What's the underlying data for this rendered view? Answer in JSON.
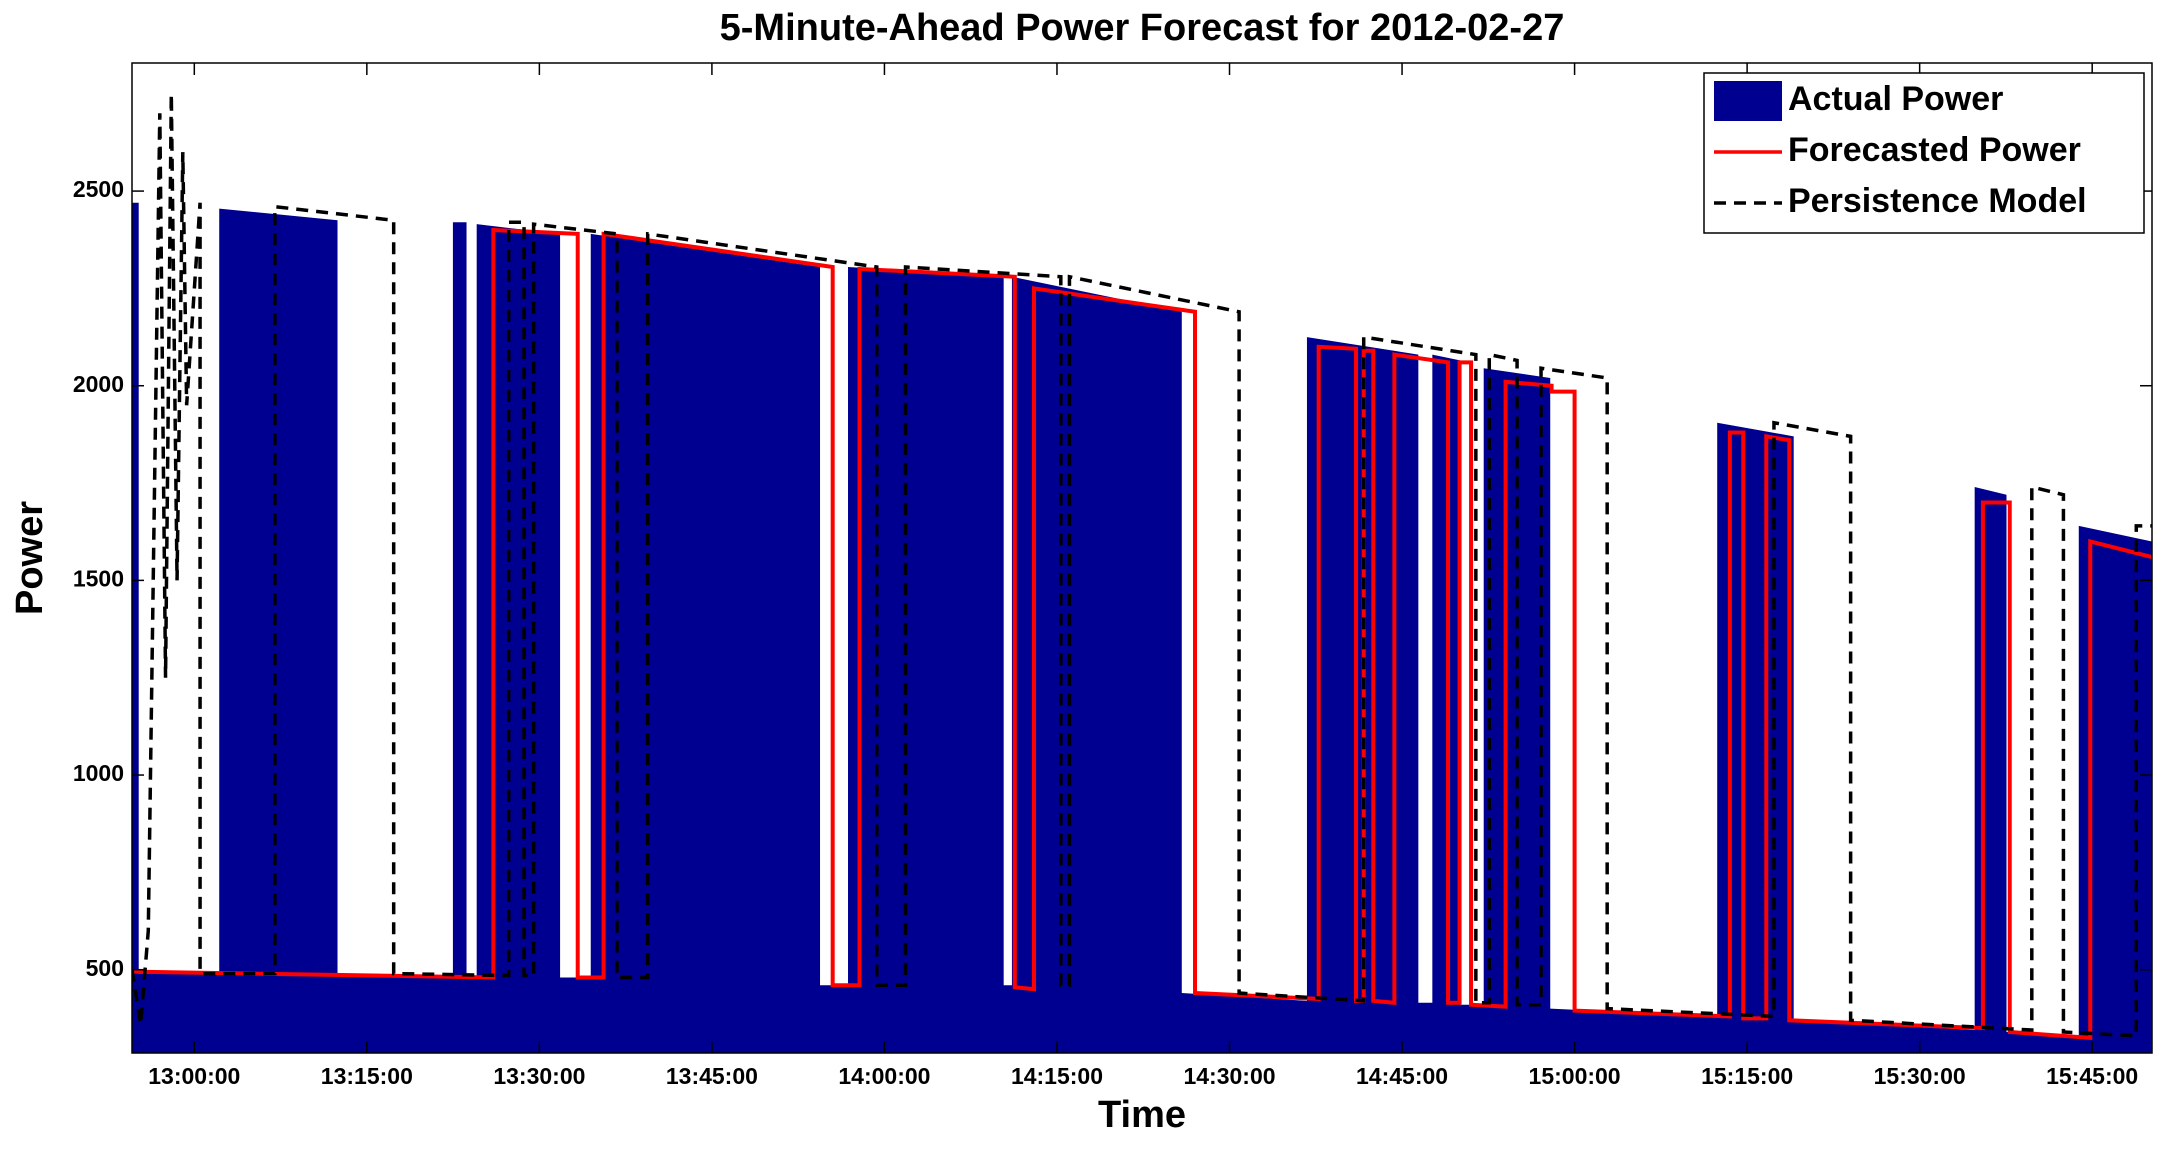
{
  "chart_data": {
    "type": "area-line",
    "title": "5-Minute-Ahead Power Forecast for 2012-02-27",
    "x_label": "Time",
    "y_label": "Power",
    "xlim": [
      "12:54:35",
      "15:50:12"
    ],
    "xticks": [
      "13:00:00",
      "13:15:00",
      "13:30:00",
      "13:45:00",
      "14:00:00",
      "14:15:00",
      "14:30:00",
      "14:45:00",
      "15:00:00",
      "15:15:00",
      "15:30:00",
      "15:45:00"
    ],
    "ylim": [
      286,
      2829
    ],
    "yticks": [
      500,
      1000,
      1500,
      2000,
      2500
    ],
    "grid": false,
    "legend": "upper right",
    "series": [
      {
        "name": "Actual Power",
        "color": "#000090",
        "style": "area",
        "x": [
          "12:54:35",
          "12:55:10",
          "12:55:10",
          "13:02:10",
          "13:02:10",
          "13:12:27",
          "13:12:27",
          "13:22:29",
          "13:22:29",
          "13:23:40",
          "13:23:40",
          "13:24:33",
          "13:24:33",
          "13:31:48",
          "13:31:48",
          "13:34:28",
          "13:34:28",
          "13:54:24",
          "13:54:24",
          "13:56:50",
          "13:56:50",
          "14:10:22",
          "14:10:22",
          "14:11:05",
          "14:11:05",
          "14:25:51",
          "14:25:51",
          "14:36:44",
          "14:36:44",
          "14:46:25",
          "14:46:25",
          "14:47:38",
          "14:47:38",
          "14:50:03",
          "14:50:03",
          "14:52:06",
          "14:52:06",
          "14:57:53",
          "14:57:53",
          "15:12:24",
          "15:12:24",
          "15:19:03",
          "15:19:03",
          "15:34:47",
          "15:34:47",
          "15:37:33",
          "15:37:33",
          "15:43:50",
          "15:43:50",
          "15:50:12"
        ],
        "values": [
          2470,
          2470,
          490,
          490,
          2455,
          2425,
          490,
          485,
          2420,
          2420,
          485,
          485,
          2415,
          2390,
          480,
          480,
          2390,
          2305,
          460,
          460,
          2305,
          2280,
          460,
          460,
          2280,
          2190,
          440,
          420,
          2125,
          2080,
          415,
          415,
          2080,
          2065,
          410,
          410,
          2045,
          2020,
          400,
          380,
          1905,
          1870,
          370,
          345,
          1740,
          1720,
          340,
          330,
          1640,
          1600
        ]
      },
      {
        "name": "Forecasted Power",
        "color": "#ff0000",
        "style": "solid",
        "x": [
          "12:54:35",
          "13:26:00",
          "13:26:00",
          "13:33:20",
          "13:33:20",
          "13:35:35",
          "13:35:35",
          "13:55:30",
          "13:55:30",
          "13:57:50",
          "13:57:50",
          "14:11:20",
          "14:11:20",
          "14:13:00",
          "14:13:00",
          "14:27:00",
          "14:27:00",
          "14:37:45",
          "14:37:45",
          "14:41:00",
          "14:41:00",
          "14:41:40",
          "14:41:40",
          "14:42:30",
          "14:42:30",
          "14:44:20",
          "14:44:20",
          "14:49:00",
          "14:49:00",
          "14:50:00",
          "14:50:00",
          "14:51:00",
          "14:51:00",
          "14:54:00",
          "14:54:00",
          "14:58:00",
          "14:58:00",
          "15:00:00",
          "15:00:00",
          "15:13:30",
          "15:13:30",
          "15:14:40",
          "15:14:40",
          "15:16:40",
          "15:16:40",
          "15:18:40",
          "15:18:40",
          "15:35:30",
          "15:35:30",
          "15:37:50",
          "15:37:50",
          "15:44:50",
          "15:44:50",
          "15:50:12"
        ],
        "values": [
          495,
          480,
          2400,
          2390,
          480,
          480,
          2390,
          2305,
          460,
          460,
          2300,
          2280,
          455,
          450,
          2250,
          2190,
          440,
          425,
          2100,
          2095,
          420,
          420,
          2090,
          2090,
          420,
          415,
          2080,
          2060,
          415,
          415,
          2060,
          2060,
          410,
          405,
          2010,
          2000,
          1985,
          1985,
          395,
          380,
          1880,
          1880,
          375,
          375,
          1870,
          1860,
          370,
          350,
          1700,
          1700,
          340,
          325,
          1600,
          1560
        ]
      },
      {
        "name": "Persistence Model",
        "color": "#000000",
        "style": "dashed",
        "x": [
          "12:54:35",
          "12:55:20",
          "12:56:00",
          "12:57:00",
          "12:57:30",
          "12:58:00",
          "12:58:30",
          "12:59:00",
          "12:59:20",
          "13:00:30",
          "13:00:30",
          "13:07:00",
          "13:07:00",
          "13:17:20",
          "13:17:20",
          "13:27:20",
          "13:27:20",
          "13:28:40",
          "13:28:40",
          "13:29:30",
          "13:29:30",
          "13:36:45",
          "13:36:45",
          "13:39:25",
          "13:39:25",
          "13:59:20",
          "13:59:20",
          "14:01:50",
          "14:01:50",
          "14:15:20",
          "14:15:20",
          "14:16:05",
          "14:16:05",
          "14:30:50",
          "14:30:50",
          "14:41:40",
          "14:41:40",
          "14:51:25",
          "14:51:25",
          "14:52:35",
          "14:52:35",
          "14:55:00",
          "14:55:00",
          "14:57:05",
          "14:57:05",
          "15:02:50",
          "15:02:50",
          "15:17:20",
          "15:17:20",
          "15:24:00",
          "15:24:00",
          "15:39:45",
          "15:39:45",
          "15:42:30",
          "15:42:30",
          "15:48:50",
          "15:48:50",
          "15:50:12"
        ],
        "values": [
          500,
          360,
          600,
          2700,
          1250,
          2750,
          1500,
          2600,
          1950,
          2470,
          490,
          490,
          2460,
          2425,
          490,
          485,
          2420,
          2420,
          485,
          485,
          2415,
          2390,
          480,
          480,
          2390,
          2305,
          460,
          460,
          2305,
          2280,
          460,
          460,
          2280,
          2190,
          440,
          420,
          2125,
          2080,
          415,
          415,
          2080,
          2065,
          410,
          410,
          2045,
          2020,
          400,
          380,
          1905,
          1870,
          370,
          345,
          1740,
          1720,
          340,
          330,
          1640,
          1640
        ]
      }
    ]
  }
}
